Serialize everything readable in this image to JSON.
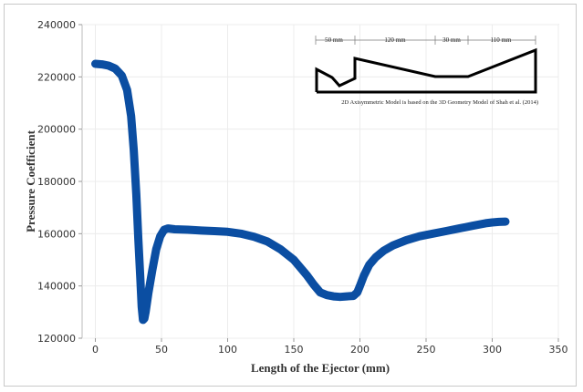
{
  "chart_data": {
    "type": "line",
    "xlabel": "Length of the Ejector (mm)",
    "ylabel": "Pressure Coefficient",
    "xlim": [
      -10,
      350
    ],
    "ylim": [
      120000,
      240000
    ],
    "xticks": [
      0,
      50,
      100,
      150,
      200,
      250,
      300,
      350
    ],
    "yticks": [
      120000,
      140000,
      160000,
      180000,
      200000,
      220000,
      240000
    ],
    "grid": true,
    "series": [
      {
        "color": "#0b4ea2",
        "x": [
          0,
          5,
          10,
          15,
          20,
          24,
          27,
          29,
          31,
          32.5,
          34,
          35,
          36,
          37,
          38,
          40,
          43,
          46,
          49,
          52,
          55,
          60,
          70,
          80,
          90,
          100,
          110,
          120,
          130,
          140,
          150,
          155,
          160,
          165,
          170,
          175,
          180,
          185,
          190,
          195,
          198,
          200,
          203,
          207,
          212,
          218,
          225,
          235,
          245,
          255,
          265,
          275,
          285,
          290,
          295,
          300,
          305,
          310
        ],
        "y": [
          225000,
          224800,
          224300,
          223200,
          220500,
          215000,
          205000,
          192000,
          175000,
          158000,
          143000,
          132000,
          127000,
          127500,
          130000,
          137000,
          146000,
          154000,
          159000,
          161500,
          162000,
          161700,
          161500,
          161200,
          161000,
          160700,
          160000,
          158800,
          157000,
          154000,
          150000,
          147000,
          144000,
          140500,
          137500,
          136500,
          136000,
          135800,
          136000,
          136200,
          137500,
          140000,
          144000,
          148000,
          151000,
          153500,
          155500,
          157500,
          159000,
          160000,
          161000,
          162000,
          163000,
          163500,
          164000,
          164300,
          164500,
          164600
        ]
      }
    ]
  },
  "inset": {
    "segments": [
      "50 mm",
      "120 mm",
      "30 mm",
      "110 mm"
    ],
    "caption": "2D Axisymmetric Model is based on the 3D Geometry Model of Shah et al. (2014)"
  }
}
